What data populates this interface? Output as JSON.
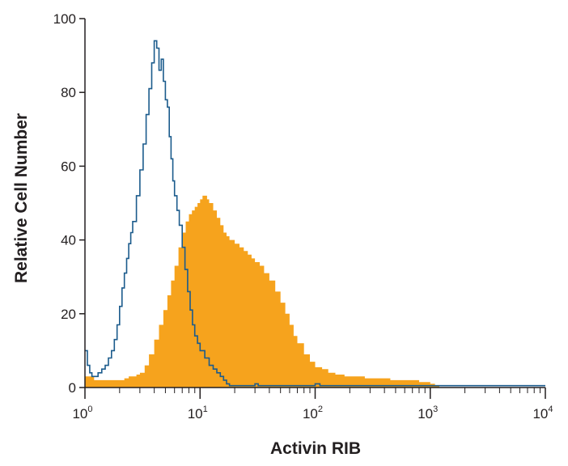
{
  "chart_data": {
    "type": "area",
    "title": "",
    "xlabel": "Activin RIB",
    "ylabel": "Relative Cell Number",
    "x_scale": "log",
    "xlim": [
      1,
      10000
    ],
    "ylim": [
      0,
      100
    ],
    "x_ticks": [
      {
        "value": 1,
        "base": "10",
        "exp": "0"
      },
      {
        "value": 10,
        "base": "10",
        "exp": "1"
      },
      {
        "value": 100,
        "base": "10",
        "exp": "2"
      },
      {
        "value": 1000,
        "base": "10",
        "exp": "3"
      },
      {
        "value": 10000,
        "base": "10",
        "exp": "4"
      }
    ],
    "y_ticks": [
      "0",
      "20",
      "40",
      "60",
      "80",
      "100"
    ],
    "grid": false,
    "legend": "none",
    "series": [
      {
        "style": "filled",
        "color": "#f6a31d",
        "x": [
          1.0,
          1.2,
          1.4,
          1.6,
          1.8,
          2.0,
          2.2,
          2.4,
          2.6,
          2.8,
          3.0,
          3.3,
          3.6,
          4.0,
          4.4,
          4.8,
          5.2,
          5.6,
          6.0,
          6.5,
          7.0,
          7.5,
          8.0,
          8.5,
          9.0,
          9.5,
          10,
          10.5,
          11,
          11.5,
          12,
          13,
          14,
          15,
          16,
          17,
          18,
          20,
          22,
          24,
          26,
          28,
          30,
          33,
          36,
          40,
          45,
          50,
          55,
          60,
          65,
          70,
          80,
          90,
          100,
          115,
          130,
          150,
          180,
          220,
          270,
          350,
          450,
          600,
          800,
          1000,
          1100,
          1200
        ],
        "y": [
          3,
          2,
          2,
          2,
          2,
          2,
          2.5,
          3,
          3,
          3.5,
          4,
          6,
          9,
          13,
          17,
          21,
          25,
          29,
          33,
          38,
          42,
          45,
          47,
          48,
          49,
          50,
          51,
          52,
          52,
          51,
          50,
          48,
          46,
          44,
          42,
          41,
          40,
          39,
          38,
          37,
          36,
          35,
          34,
          33,
          31,
          29,
          26,
          23,
          20,
          17,
          14,
          12,
          9,
          7,
          5.5,
          5,
          4,
          3.5,
          3,
          3,
          2.5,
          2.5,
          2,
          2,
          1.5,
          1,
          0.5,
          0
        ]
      },
      {
        "style": "line",
        "color": "#1b5b8c",
        "x": [
          1.0,
          1.05,
          1.1,
          1.15,
          1.2,
          1.3,
          1.4,
          1.5,
          1.6,
          1.7,
          1.8,
          1.9,
          2.0,
          2.1,
          2.2,
          2.3,
          2.4,
          2.5,
          2.6,
          2.8,
          3.0,
          3.2,
          3.4,
          3.6,
          3.8,
          4.0,
          4.2,
          4.4,
          4.6,
          4.8,
          5.0,
          5.2,
          5.4,
          5.6,
          5.8,
          6.0,
          6.3,
          6.6,
          7.0,
          7.4,
          7.8,
          8.2,
          8.6,
          9.0,
          9.5,
          10,
          11,
          12,
          13,
          14,
          15,
          16,
          17,
          18,
          20,
          25,
          30,
          32,
          35,
          40,
          60,
          90,
          100,
          110,
          200,
          500,
          1000,
          5000,
          10000
        ],
        "y": [
          10,
          6,
          4,
          3,
          3,
          4,
          5,
          6,
          8,
          10,
          13,
          17,
          22,
          27,
          31,
          35,
          39,
          42,
          45,
          52,
          59,
          66,
          74,
          81,
          88,
          94,
          92,
          86,
          89,
          83,
          78,
          76,
          68,
          62,
          56,
          52,
          48,
          44,
          38,
          32,
          26,
          21,
          17,
          14,
          12,
          10,
          8,
          6,
          5,
          4,
          3,
          2,
          1,
          0.5,
          0.5,
          0.5,
          1,
          0.5,
          0.5,
          0.5,
          0.5,
          0.5,
          1,
          0.5,
          0.5,
          0.5,
          0.5,
          0.5,
          0.5
        ]
      }
    ]
  }
}
